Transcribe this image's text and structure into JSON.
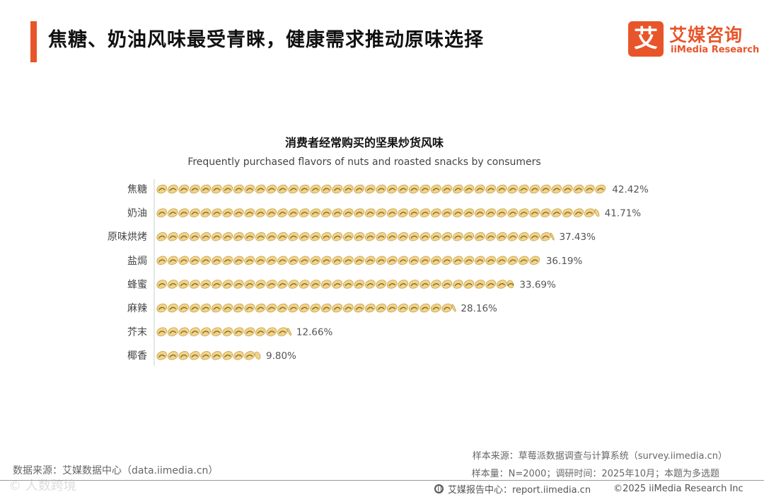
{
  "header": {
    "title": "焦糖、奶油风味最受青睐，健康需求推动原味选择",
    "logo_mark": "艾",
    "logo_cn": "艾媒咨询",
    "logo_en": "iiMedia Research"
  },
  "chart_data": {
    "type": "bar",
    "orientation": "horizontal",
    "title": "消费者经常购买的坚果炒货风味",
    "subtitle": "Frequently purchased flavors of nuts and roasted snacks by consumers",
    "categories": [
      "焦糖",
      "奶油",
      "原味烘烤",
      "盐焗",
      "蜂蜜",
      "麻辣",
      "芥末",
      "椰香"
    ],
    "values": [
      42.42,
      41.71,
      37.43,
      36.19,
      33.69,
      28.16,
      12.66,
      9.8
    ],
    "value_labels": [
      "42.42%",
      "41.71%",
      "37.43%",
      "36.19%",
      "33.69%",
      "28.16%",
      "12.66%",
      "9.80%"
    ],
    "unit": "%",
    "xlim": [
      0,
      100
    ],
    "bar_style": "repeated peanut/hot-dog icons",
    "grid": false,
    "colors": {
      "icon_shell": "#f0d48a",
      "icon_stripe": "#8a6a2a",
      "axis": "#cccccc"
    }
  },
  "footer": {
    "data_source": "数据来源：艾媒数据中心（data.iimedia.cn）",
    "watermark": "© 人数跨境",
    "sample_source": "样本来源：草莓派数据调查与计算系统（survey.iimedia.cn）",
    "sample_info": "样本量：N=2000；调研时间：2025年10月；本题为多选题",
    "report_center": "艾媒报告中心：report.iimedia.cn",
    "copyright": "©2025  iiMedia Research  Inc"
  },
  "colors": {
    "accent": "#e8552a"
  }
}
